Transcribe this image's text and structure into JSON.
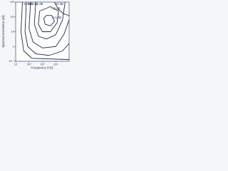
{
  "chart_data": {
    "type": "contour",
    "xlabel": "Frequency (Hz)",
    "ylabel": "Spectral resolution (Δf)",
    "xscale": "log",
    "yscale": "log",
    "grid": false,
    "xlim": [
      10,
      100000
    ],
    "ylim": [
      0.1,
      1000
    ],
    "xticks": [
      10,
      {
        "value": 100,
        "label": "10²"
      },
      {
        "value": 1000,
        "label": "10³"
      },
      {
        "value": 10000,
        "label": "10⁴"
      }
    ],
    "yticks": [
      {
        "value": 0.1,
        "label": "10⁻¹"
      },
      1,
      10,
      {
        "value": 100,
        "label": "10²"
      },
      {
        "value": 1000,
        "label": "10³"
      }
    ],
    "color": "#1d2d5c",
    "series": [
      {
        "name": "10 dB",
        "x": [
          32,
          25,
          40,
          160,
          100000
        ],
        "y": [
          1000,
          10,
          0.5,
          0.16,
          0.13
        ]
      },
      {
        "name": "6 dB",
        "x": [
          63,
          50,
          80,
          320,
          3200,
          32000,
          100000
        ],
        "y": [
          1000,
          10,
          1,
          0.32,
          0.25,
          0.5,
          1.6
        ]
      },
      {
        "name": "3 dB",
        "x": [
          130,
          100,
          200,
          1000,
          10000,
          40000,
          100000
        ],
        "y": [
          1000,
          16,
          2,
          0.8,
          1,
          6.3,
          63
        ]
      },
      {
        "name": "1 dB",
        "x": [
          320,
          250,
          500,
          2000,
          10000,
          32000,
          50000
        ],
        "y": [
          1000,
          32,
          5,
          3.2,
          6.3,
          63,
          1000
        ]
      },
      {
        "name": "0.5 dB",
        "x": [
          630,
          500,
          1000,
          4000,
          12600,
          16000,
          4000,
          630
        ],
        "y": [
          250,
          32,
          10,
          10,
          40,
          250,
          500,
          250
        ]
      },
      {
        "name": "0.1 dB",
        "x": [
          1260,
          1600,
          4000,
          8000,
          5000,
          2000,
          1260
        ],
        "y": [
          80,
          32,
          25,
          50,
          126,
          126,
          80
        ]
      },
      {
        "name": "20 dB",
        "x": [
          8000,
          16000,
          40000,
          100000
        ],
        "y": [
          1000,
          320,
          160,
          126
        ]
      }
    ]
  }
}
